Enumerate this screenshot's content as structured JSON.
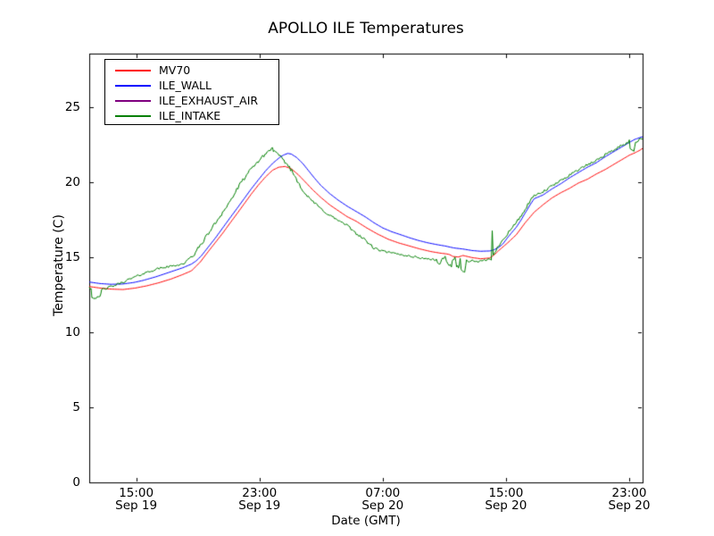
{
  "title": "APOLLO ILE Temperatures",
  "axes": {
    "xlabel": "Date (GMT)",
    "ylabel": "Temperature (C)",
    "y_ticks": [
      "0",
      "5",
      "10",
      "15",
      "20",
      "25"
    ],
    "x_ticks": [
      {
        "time": "15:00",
        "date": "Sep 19"
      },
      {
        "time": "23:00",
        "date": "Sep 19"
      },
      {
        "time": "07:00",
        "date": "Sep 20"
      },
      {
        "time": "15:00",
        "date": "Sep 20"
      },
      {
        "time": "23:00",
        "date": "Sep 20"
      }
    ]
  },
  "legend": [
    {
      "label": "MV70",
      "color": "#ff0000"
    },
    {
      "label": "ILE_WALL",
      "color": "#0000ff"
    },
    {
      "label": "ILE_EXHAUST_AIR",
      "color": "#800080"
    },
    {
      "label": "ILE_INTAKE",
      "color": "#008000"
    }
  ],
  "chart_data": {
    "type": "line",
    "title": "APOLLO ILE Temperatures",
    "xlabel": "Date (GMT)",
    "ylabel": "Temperature (C)",
    "x_unit": "hours since Sep 19 00:00 GMT",
    "xlim": [
      11.95,
      47.87
    ],
    "ylim": [
      0,
      28.57
    ],
    "x_tick_hours": [
      15,
      23,
      31,
      39,
      47
    ],
    "y_tick_values": [
      0,
      5,
      10,
      15,
      20,
      25
    ],
    "grid": false,
    "legend_position": "upper left",
    "series": [
      {
        "name": "MV70",
        "color": "#ff0000",
        "noise": 0,
        "points": [
          [
            11.95,
            13.05
          ],
          [
            12.64,
            12.95
          ],
          [
            13.34,
            12.88
          ],
          [
            14.14,
            12.85
          ],
          [
            14.95,
            12.95
          ],
          [
            15.7,
            13.1
          ],
          [
            16.46,
            13.3
          ],
          [
            17.26,
            13.55
          ],
          [
            18.02,
            13.85
          ],
          [
            18.59,
            14.1
          ],
          [
            19.17,
            14.7
          ],
          [
            19.69,
            15.4
          ],
          [
            20.15,
            16.0
          ],
          [
            20.61,
            16.6
          ],
          [
            21.07,
            17.25
          ],
          [
            21.54,
            17.9
          ],
          [
            22.0,
            18.55
          ],
          [
            22.46,
            19.2
          ],
          [
            22.92,
            19.8
          ],
          [
            23.39,
            20.35
          ],
          [
            23.85,
            20.8
          ],
          [
            24.25,
            21.0
          ],
          [
            24.66,
            21.05
          ],
          [
            25.06,
            20.9
          ],
          [
            25.52,
            20.5
          ],
          [
            25.99,
            20.0
          ],
          [
            26.45,
            19.5
          ],
          [
            26.97,
            19.0
          ],
          [
            27.55,
            18.5
          ],
          [
            28.12,
            18.1
          ],
          [
            28.7,
            17.7
          ],
          [
            29.28,
            17.4
          ],
          [
            29.97,
            16.95
          ],
          [
            30.66,
            16.55
          ],
          [
            31.36,
            16.2
          ],
          [
            32.05,
            15.95
          ],
          [
            32.74,
            15.75
          ],
          [
            33.43,
            15.55
          ],
          [
            34.13,
            15.38
          ],
          [
            34.71,
            15.28
          ],
          [
            35.17,
            15.22
          ],
          [
            35.34,
            15.18
          ],
          [
            35.57,
            15.05
          ],
          [
            35.92,
            15.02
          ],
          [
            36.21,
            15.12
          ],
          [
            36.79,
            14.98
          ],
          [
            37.36,
            14.9
          ],
          [
            37.94,
            14.95
          ],
          [
            38.23,
            15.15
          ],
          [
            38.52,
            15.44
          ],
          [
            39.1,
            15.95
          ],
          [
            39.67,
            16.5
          ],
          [
            40.25,
            17.3
          ],
          [
            40.83,
            18.0
          ],
          [
            41.41,
            18.5
          ],
          [
            41.98,
            18.95
          ],
          [
            42.56,
            19.3
          ],
          [
            43.14,
            19.6
          ],
          [
            43.71,
            19.95
          ],
          [
            44.29,
            20.2
          ],
          [
            44.87,
            20.55
          ],
          [
            45.45,
            20.85
          ],
          [
            46.02,
            21.2
          ],
          [
            46.6,
            21.55
          ],
          [
            47.01,
            21.8
          ],
          [
            47.35,
            21.95
          ],
          [
            47.64,
            22.1
          ],
          [
            47.87,
            22.25
          ]
        ]
      },
      {
        "name": "ILE_WALL",
        "color": "#0000ff",
        "noise": 0,
        "points": [
          [
            11.95,
            13.35
          ],
          [
            12.64,
            13.25
          ],
          [
            13.34,
            13.2
          ],
          [
            14.14,
            13.22
          ],
          [
            14.84,
            13.32
          ],
          [
            15.42,
            13.45
          ],
          [
            16.28,
            13.7
          ],
          [
            17.15,
            14.0
          ],
          [
            18.02,
            14.3
          ],
          [
            18.59,
            14.55
          ],
          [
            18.88,
            14.75
          ],
          [
            19.23,
            15.1
          ],
          [
            19.69,
            15.7
          ],
          [
            20.15,
            16.3
          ],
          [
            20.61,
            16.95
          ],
          [
            21.07,
            17.6
          ],
          [
            21.54,
            18.25
          ],
          [
            22.0,
            18.9
          ],
          [
            22.46,
            19.55
          ],
          [
            22.92,
            20.15
          ],
          [
            23.39,
            20.75
          ],
          [
            23.85,
            21.25
          ],
          [
            24.25,
            21.6
          ],
          [
            24.54,
            21.8
          ],
          [
            24.83,
            21.92
          ],
          [
            25.06,
            21.88
          ],
          [
            25.41,
            21.65
          ],
          [
            25.81,
            21.25
          ],
          [
            26.16,
            20.8
          ],
          [
            26.51,
            20.35
          ],
          [
            26.97,
            19.8
          ],
          [
            27.55,
            19.25
          ],
          [
            28.12,
            18.8
          ],
          [
            28.7,
            18.4
          ],
          [
            29.28,
            18.05
          ],
          [
            29.86,
            17.7
          ],
          [
            30.43,
            17.3
          ],
          [
            31.01,
            16.95
          ],
          [
            31.59,
            16.7
          ],
          [
            32.17,
            16.5
          ],
          [
            32.74,
            16.3
          ],
          [
            33.32,
            16.12
          ],
          [
            33.9,
            15.97
          ],
          [
            34.48,
            15.85
          ],
          [
            35.05,
            15.75
          ],
          [
            35.63,
            15.62
          ],
          [
            36.21,
            15.55
          ],
          [
            36.79,
            15.45
          ],
          [
            37.36,
            15.4
          ],
          [
            37.94,
            15.42
          ],
          [
            38.23,
            15.5
          ],
          [
            38.52,
            15.65
          ],
          [
            38.81,
            15.9
          ],
          [
            39.1,
            16.3
          ],
          [
            39.38,
            16.65
          ],
          [
            39.67,
            17.0
          ],
          [
            39.96,
            17.45
          ],
          [
            40.25,
            17.95
          ],
          [
            40.54,
            18.45
          ],
          [
            40.83,
            18.9
          ],
          [
            41.41,
            19.15
          ],
          [
            41.98,
            19.55
          ],
          [
            42.56,
            19.9
          ],
          [
            43.14,
            20.3
          ],
          [
            43.71,
            20.65
          ],
          [
            44.29,
            21.0
          ],
          [
            44.87,
            21.3
          ],
          [
            45.45,
            21.7
          ],
          [
            46.02,
            22.05
          ],
          [
            46.6,
            22.4
          ],
          [
            47.01,
            22.65
          ],
          [
            47.35,
            22.85
          ],
          [
            47.64,
            22.95
          ],
          [
            47.76,
            23.0
          ],
          [
            47.87,
            23.02
          ]
        ]
      },
      {
        "name": "ILE_EXHAUST_AIR",
        "color": "#800080",
        "noise": 0,
        "points": [],
        "note": "listed in legend but no curve visible on the plot (hidden behind ILE_WALL)"
      },
      {
        "name": "ILE_INTAKE",
        "color": "#008000",
        "noise": 0.06,
        "points": [
          [
            11.95,
            13.05
          ],
          [
            12.07,
            12.9
          ],
          [
            12.12,
            12.35
          ],
          [
            12.3,
            12.28
          ],
          [
            12.47,
            12.32
          ],
          [
            12.64,
            12.27
          ],
          [
            12.76,
            12.85
          ],
          [
            13.11,
            12.95
          ],
          [
            13.68,
            13.15
          ],
          [
            14.26,
            13.4
          ],
          [
            14.84,
            13.65
          ],
          [
            15.42,
            13.9
          ],
          [
            15.99,
            14.1
          ],
          [
            16.57,
            14.28
          ],
          [
            17.26,
            14.4
          ],
          [
            17.73,
            14.5
          ],
          [
            18.02,
            14.55
          ],
          [
            18.3,
            14.75
          ],
          [
            18.77,
            15.2
          ],
          [
            19.23,
            15.9
          ],
          [
            19.69,
            16.6
          ],
          [
            20.15,
            17.3
          ],
          [
            20.61,
            18.0
          ],
          [
            21.02,
            18.6
          ],
          [
            21.36,
            19.2
          ],
          [
            21.77,
            19.9
          ],
          [
            22.17,
            20.5
          ],
          [
            22.58,
            21.0
          ],
          [
            22.92,
            21.4
          ],
          [
            23.21,
            21.7
          ],
          [
            23.5,
            22.0
          ],
          [
            23.73,
            22.18
          ],
          [
            23.85,
            22.3
          ],
          [
            23.96,
            22.05
          ],
          [
            24.2,
            21.85
          ],
          [
            24.43,
            21.6
          ],
          [
            24.66,
            21.35
          ],
          [
            24.95,
            21.0
          ],
          [
            25.24,
            20.5
          ],
          [
            25.52,
            20.0
          ],
          [
            25.81,
            19.5
          ],
          [
            26.1,
            19.05
          ],
          [
            26.39,
            18.8
          ],
          [
            26.74,
            18.45
          ],
          [
            27.08,
            18.15
          ],
          [
            27.55,
            17.8
          ],
          [
            28.12,
            17.45
          ],
          [
            28.7,
            17.1
          ],
          [
            29.28,
            16.6
          ],
          [
            29.86,
            16.15
          ],
          [
            30.43,
            15.6
          ],
          [
            31.01,
            15.4
          ],
          [
            31.59,
            15.28
          ],
          [
            32.17,
            15.18
          ],
          [
            32.74,
            15.08
          ],
          [
            33.32,
            14.98
          ],
          [
            33.9,
            14.9
          ],
          [
            34.48,
            14.8
          ],
          [
            34.65,
            14.58
          ],
          [
            34.77,
            14.55
          ],
          [
            34.88,
            14.95
          ],
          [
            35.05,
            14.98
          ],
          [
            35.23,
            14.52
          ],
          [
            35.46,
            14.48
          ],
          [
            35.57,
            14.88
          ],
          [
            35.69,
            14.9
          ],
          [
            35.8,
            14.42
          ],
          [
            35.92,
            14.38
          ],
          [
            36.03,
            14.85
          ],
          [
            36.09,
            14.3
          ],
          [
            36.21,
            13.97
          ],
          [
            36.32,
            14.02
          ],
          [
            36.44,
            14.8
          ],
          [
            36.67,
            14.72
          ],
          [
            36.9,
            14.78
          ],
          [
            37.08,
            14.68
          ],
          [
            37.36,
            14.72
          ],
          [
            37.59,
            14.78
          ],
          [
            37.82,
            14.85
          ],
          [
            38.0,
            14.92
          ],
          [
            38.05,
            14.95
          ],
          [
            38.11,
            16.7
          ],
          [
            38.17,
            15.05
          ],
          [
            38.28,
            15.25
          ],
          [
            38.52,
            15.8
          ],
          [
            39.1,
            16.6
          ],
          [
            39.67,
            17.3
          ],
          [
            40.25,
            18.2
          ],
          [
            40.83,
            19.1
          ],
          [
            41.41,
            19.35
          ],
          [
            41.98,
            19.75
          ],
          [
            42.56,
            20.1
          ],
          [
            43.14,
            20.5
          ],
          [
            43.71,
            20.85
          ],
          [
            44.29,
            21.15
          ],
          [
            44.87,
            21.45
          ],
          [
            45.45,
            21.85
          ],
          [
            46.02,
            22.15
          ],
          [
            46.6,
            22.5
          ],
          [
            46.83,
            22.6
          ],
          [
            47.01,
            22.7
          ],
          [
            47.06,
            22.2
          ],
          [
            47.18,
            22.15
          ],
          [
            47.3,
            22.2
          ],
          [
            47.41,
            22.6
          ],
          [
            47.52,
            22.75
          ],
          [
            47.64,
            22.85
          ],
          [
            47.76,
            22.95
          ],
          [
            47.87,
            22.9
          ]
        ]
      }
    ]
  }
}
